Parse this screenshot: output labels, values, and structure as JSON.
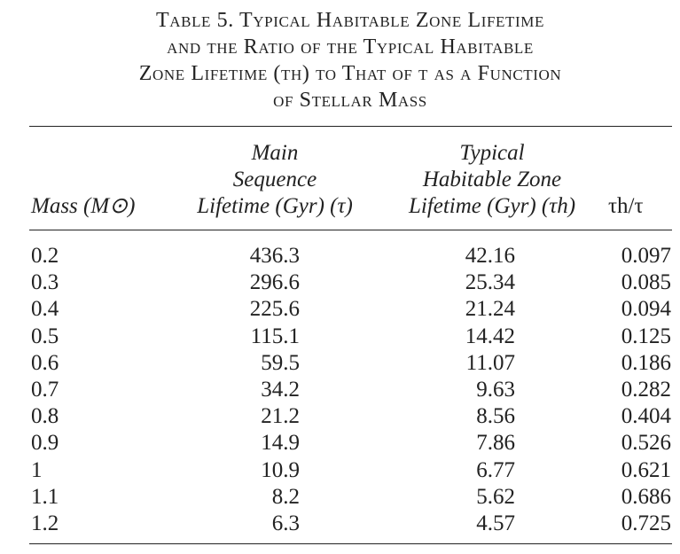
{
  "caption": {
    "line1": "Table 5. Typical Habitable Zone Lifetime",
    "line2": "and the Ratio of the Typical Habitable",
    "line3": "Zone Lifetime (τh) to That of τ as a Function",
    "line4": "of Stellar Mass"
  },
  "headers": {
    "mass": "Mass (M⊙)",
    "main_line1": "Main",
    "main_line2": "Sequence",
    "main_line3": "Lifetime (Gyr) (τ)",
    "hab_line1": "Typical",
    "hab_line2": "Habitable Zone",
    "hab_line3": "Lifetime (Gyr) (τh)",
    "ratio": "τh/τ"
  },
  "rows": [
    {
      "mass": "0.2",
      "main": "436.3",
      "hab": "42.16",
      "ratio": "0.097"
    },
    {
      "mass": "0.3",
      "main": "296.6",
      "hab": "25.34",
      "ratio": "0.085"
    },
    {
      "mass": "0.4",
      "main": "225.6",
      "hab": "21.24",
      "ratio": "0.094"
    },
    {
      "mass": "0.5",
      "main": "115.1",
      "hab": "14.42",
      "ratio": "0.125"
    },
    {
      "mass": "0.6",
      "main": "59.5",
      "hab": "11.07",
      "ratio": "0.186"
    },
    {
      "mass": "0.7",
      "main": "34.2",
      "hab": "9.63",
      "ratio": "0.282"
    },
    {
      "mass": "0.8",
      "main": "21.2",
      "hab": "8.56",
      "ratio": "0.404"
    },
    {
      "mass": "0.9",
      "main": "14.9",
      "hab": "7.86",
      "ratio": "0.526"
    },
    {
      "mass": "1",
      "main": "10.9",
      "hab": "6.77",
      "ratio": "0.621"
    },
    {
      "mass": "1.1",
      "main": "8.2",
      "hab": "5.62",
      "ratio": "0.686"
    },
    {
      "mass": "1.2",
      "main": "6.3",
      "hab": "4.57",
      "ratio": "0.725"
    }
  ]
}
